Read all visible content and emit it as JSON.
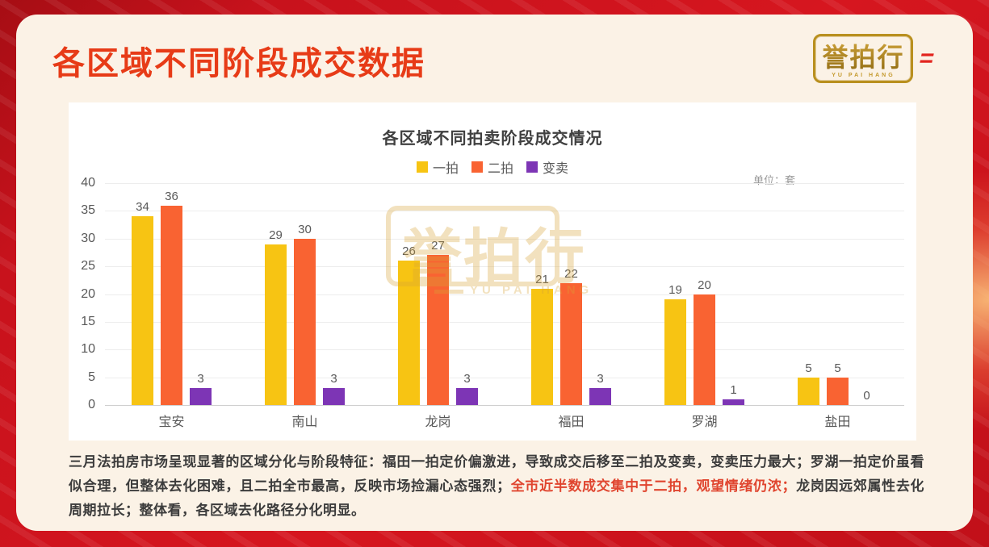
{
  "page_title": "各区域不同阶段成交数据",
  "logo": {
    "text": "誉拍行",
    "subtext": "YU PAI HANG",
    "mark": "="
  },
  "chart_data": {
    "type": "bar",
    "title": "各区域不同拍卖阶段成交情况",
    "unit_label": "单位：套",
    "categories": [
      "宝安",
      "南山",
      "龙岗",
      "福田",
      "罗湖",
      "盐田"
    ],
    "series": [
      {
        "name": "一拍",
        "color": "#f7c413",
        "values": [
          34,
          29,
          26,
          21,
          19,
          5
        ]
      },
      {
        "name": "二拍",
        "color": "#f96332",
        "values": [
          36,
          30,
          27,
          22,
          20,
          5
        ]
      },
      {
        "name": "变卖",
        "color": "#7d35b5",
        "values": [
          3,
          3,
          3,
          3,
          1,
          0
        ]
      }
    ],
    "ylim": [
      0,
      40
    ],
    "yticks": [
      0,
      5,
      10,
      15,
      20,
      25,
      30,
      35,
      40
    ],
    "grid": true,
    "legend_position": "top"
  },
  "watermark": {
    "text": "誉拍行",
    "subtext": "YU PAI HANG"
  },
  "footer": {
    "segments": [
      {
        "text": "三月法拍房市场呈现显著的区域分化与阶段特征：福田一拍定价偏激进，导致成交后移至二拍及变卖，变卖压力最大；罗湖一拍定价虽看似合理，但整体去化困难，且二拍全市最高，反映市场捡漏心态强烈；",
        "color": "dark"
      },
      {
        "text": "全市近半数成交集中于二拍，观望情绪仍浓；",
        "color": "red"
      },
      {
        "text": "龙岗因远郊属性去化周期拉长；整体看，各区域去化路径分化明显。",
        "color": "dark"
      }
    ]
  },
  "colors": {
    "background_red": "#c8121c",
    "card_cream": "#fbf2e6",
    "title_red": "#e73b17",
    "logo_gold": "#b9901f",
    "highlight_red": "#e0452f",
    "series_yipai": "#f7c413",
    "series_erpai": "#f96332",
    "series_bianmai": "#7d35b5"
  }
}
